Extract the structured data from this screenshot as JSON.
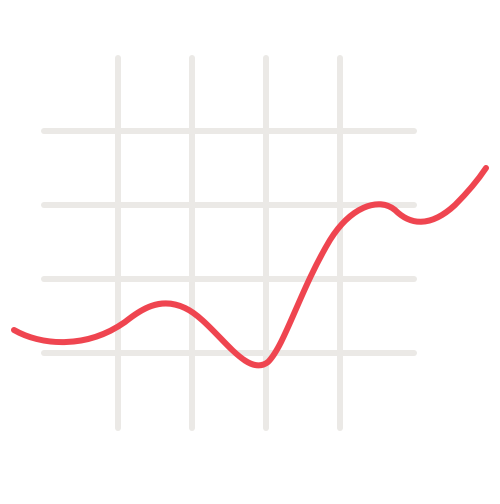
{
  "icon": {
    "name": "line-chart-icon",
    "grid": {
      "vertical_lines": 4,
      "horizontal_lines": 4,
      "color": "#ebe9e6"
    },
    "trend_line": {
      "color": "#ef4550",
      "shape": "wavy upward trend: gentle dip, small hump, deep trough, steep rise, small bump, rise to upper right"
    }
  }
}
